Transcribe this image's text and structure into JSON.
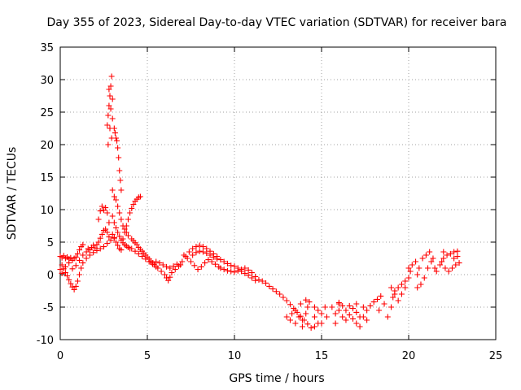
{
  "chart_data": {
    "type": "scatter",
    "title": "Day 355 of 2023, Sidereal Day-to-day VTEC variation (SDTVAR) for receiver bara",
    "xlabel": "GPS time / hours",
    "ylabel": "SDTVAR / TECUs",
    "xlim": [
      0,
      25
    ],
    "ylim": [
      -10,
      35
    ],
    "xticks": [
      0,
      5,
      10,
      15,
      20,
      25
    ],
    "yticks": [
      -10,
      -5,
      0,
      5,
      10,
      15,
      20,
      25,
      30,
      35
    ],
    "grid": true,
    "marker": "+",
    "color": "#ff0000",
    "series": [
      {
        "name": "SDTVAR",
        "points": [
          [
            0.0,
            2.8
          ],
          [
            0.1,
            2.6
          ],
          [
            0.2,
            2.9
          ],
          [
            0.3,
            2.5
          ],
          [
            0.4,
            2.7
          ],
          [
            0.5,
            2.4
          ],
          [
            0.6,
            2.6
          ],
          [
            0.7,
            2.2
          ],
          [
            0.8,
            2.5
          ],
          [
            0.9,
            2.7
          ],
          [
            1.0,
            3.2
          ],
          [
            1.1,
            3.8
          ],
          [
            1.2,
            4.3
          ],
          [
            1.3,
            4.6
          ],
          [
            0.1,
            1.5
          ],
          [
            0.2,
            0.9
          ],
          [
            0.3,
            0.3
          ],
          [
            0.4,
            -0.2
          ],
          [
            0.5,
            -0.8
          ],
          [
            0.6,
            -1.4
          ],
          [
            0.7,
            -1.9
          ],
          [
            0.8,
            -2.3
          ],
          [
            0.9,
            -1.8
          ],
          [
            1.0,
            -1.0
          ],
          [
            1.1,
            0.0
          ],
          [
            1.2,
            1.0
          ],
          [
            1.3,
            1.8
          ],
          [
            0.0,
            0.8
          ],
          [
            0.1,
            0.2
          ],
          [
            0.3,
            1.2
          ],
          [
            0.5,
            1.8
          ],
          [
            0.7,
            0.9
          ],
          [
            0.9,
            1.4
          ],
          [
            1.1,
            2.2
          ],
          [
            1.3,
            3.0
          ],
          [
            1.5,
            3.5
          ],
          [
            1.6,
            4.0
          ],
          [
            1.7,
            3.8
          ],
          [
            1.8,
            4.2
          ],
          [
            1.9,
            4.5
          ],
          [
            2.0,
            4.1
          ],
          [
            2.1,
            4.6
          ],
          [
            2.2,
            5.0
          ],
          [
            2.3,
            5.6
          ],
          [
            2.4,
            6.2
          ],
          [
            2.5,
            6.8
          ],
          [
            2.6,
            7.0
          ],
          [
            2.7,
            6.5
          ],
          [
            2.8,
            5.8
          ],
          [
            1.5,
            2.5
          ],
          [
            1.7,
            3.0
          ],
          [
            1.9,
            3.4
          ],
          [
            2.1,
            3.7
          ],
          [
            2.3,
            4.0
          ],
          [
            2.5,
            4.3
          ],
          [
            2.7,
            4.8
          ],
          [
            2.9,
            5.3
          ],
          [
            3.1,
            5.6
          ],
          [
            2.2,
            8.5
          ],
          [
            2.3,
            9.8
          ],
          [
            2.4,
            10.5
          ],
          [
            2.5,
            9.9
          ],
          [
            2.6,
            10.3
          ],
          [
            2.7,
            9.5
          ],
          [
            2.8,
            8.0
          ],
          [
            2.7,
            23.0
          ],
          [
            2.75,
            24.5
          ],
          [
            2.8,
            26.0
          ],
          [
            2.85,
            27.5
          ],
          [
            2.9,
            29.0
          ],
          [
            2.95,
            30.5
          ],
          [
            2.8,
            28.5
          ],
          [
            2.9,
            25.5
          ],
          [
            3.0,
            27.0
          ],
          [
            3.0,
            24.0
          ],
          [
            2.85,
            22.5
          ],
          [
            2.95,
            21.0
          ],
          [
            2.75,
            20.0
          ],
          [
            3.1,
            22.5
          ],
          [
            3.15,
            21.8
          ],
          [
            3.2,
            21.0
          ],
          [
            3.25,
            20.6
          ],
          [
            3.3,
            19.5
          ],
          [
            3.35,
            18.0
          ],
          [
            3.4,
            16.0
          ],
          [
            3.45,
            14.5
          ],
          [
            3.5,
            13.0
          ],
          [
            3.0,
            13.0
          ],
          [
            3.1,
            12.0
          ],
          [
            3.2,
            11.5
          ],
          [
            3.3,
            10.5
          ],
          [
            3.4,
            9.5
          ],
          [
            3.5,
            8.5
          ],
          [
            3.6,
            7.5
          ],
          [
            3.7,
            7.0
          ],
          [
            3.8,
            6.5
          ],
          [
            3.9,
            6.0
          ],
          [
            3.0,
            9.0
          ],
          [
            3.1,
            8.0
          ],
          [
            3.2,
            7.2
          ],
          [
            3.3,
            6.5
          ],
          [
            3.4,
            5.9
          ],
          [
            3.5,
            5.3
          ],
          [
            3.6,
            4.9
          ],
          [
            3.7,
            4.6
          ],
          [
            3.8,
            4.4
          ],
          [
            3.9,
            4.2
          ],
          [
            4.0,
            4.0
          ],
          [
            3.6,
            5.5
          ],
          [
            3.7,
            6.5
          ],
          [
            3.8,
            7.5
          ],
          [
            3.9,
            8.5
          ],
          [
            4.0,
            9.5
          ],
          [
            4.1,
            10.2
          ],
          [
            4.2,
            10.8
          ],
          [
            4.3,
            11.3
          ],
          [
            4.4,
            11.6
          ],
          [
            4.5,
            11.9
          ],
          [
            4.6,
            12.0
          ],
          [
            3.0,
            6.2
          ],
          [
            3.1,
            5.7
          ],
          [
            3.2,
            5.0
          ],
          [
            3.3,
            4.5
          ],
          [
            3.4,
            4.0
          ],
          [
            3.5,
            3.8
          ],
          [
            4.1,
            5.5
          ],
          [
            4.2,
            5.2
          ],
          [
            4.3,
            4.9
          ],
          [
            4.4,
            4.6
          ],
          [
            4.5,
            4.2
          ],
          [
            4.6,
            3.9
          ],
          [
            4.7,
            3.6
          ],
          [
            4.8,
            3.3
          ],
          [
            4.9,
            3.0
          ],
          [
            5.0,
            2.7
          ],
          [
            5.1,
            2.4
          ],
          [
            5.2,
            2.1
          ],
          [
            5.3,
            1.8
          ],
          [
            4.1,
            4.0
          ],
          [
            4.3,
            3.6
          ],
          [
            4.5,
            3.2
          ],
          [
            4.7,
            2.8
          ],
          [
            4.9,
            2.4
          ],
          [
            5.1,
            2.0
          ],
          [
            5.3,
            1.6
          ],
          [
            5.5,
            1.2
          ],
          [
            5.4,
            1.5
          ],
          [
            5.6,
            1.0
          ],
          [
            5.8,
            0.5
          ],
          [
            6.0,
            0.0
          ],
          [
            6.1,
            -0.5
          ],
          [
            6.2,
            -0.9
          ],
          [
            6.3,
            -0.4
          ],
          [
            6.4,
            0.3
          ],
          [
            6.6,
            0.8
          ],
          [
            6.8,
            1.3
          ],
          [
            6.9,
            1.5
          ],
          [
            5.5,
            2.0
          ],
          [
            5.7,
            1.8
          ],
          [
            5.9,
            1.5
          ],
          [
            6.1,
            1.2
          ],
          [
            6.3,
            1.0
          ],
          [
            6.5,
            1.3
          ],
          [
            6.7,
            1.6
          ],
          [
            7.0,
            2.0
          ],
          [
            7.2,
            2.8
          ],
          [
            7.4,
            3.5
          ],
          [
            7.6,
            4.0
          ],
          [
            7.8,
            4.3
          ],
          [
            8.0,
            4.5
          ],
          [
            8.2,
            4.3
          ],
          [
            8.4,
            4.0
          ],
          [
            8.6,
            3.6
          ],
          [
            8.8,
            3.2
          ],
          [
            9.0,
            2.8
          ],
          [
            9.2,
            2.3
          ],
          [
            9.4,
            2.0
          ],
          [
            9.6,
            1.7
          ],
          [
            9.8,
            1.4
          ],
          [
            7.1,
            3.0
          ],
          [
            7.3,
            2.5
          ],
          [
            7.5,
            2.0
          ],
          [
            7.7,
            1.4
          ],
          [
            7.9,
            0.8
          ],
          [
            8.1,
            1.2
          ],
          [
            8.3,
            1.8
          ],
          [
            8.5,
            2.3
          ],
          [
            8.7,
            2.0
          ],
          [
            8.9,
            1.6
          ],
          [
            9.1,
            1.2
          ],
          [
            7.6,
            3.0
          ],
          [
            7.8,
            3.4
          ],
          [
            8.0,
            3.6
          ],
          [
            8.2,
            3.5
          ],
          [
            8.4,
            3.3
          ],
          [
            8.6,
            3.0
          ],
          [
            8.8,
            2.7
          ],
          [
            9.0,
            2.4
          ],
          [
            9.2,
            1.0
          ],
          [
            9.4,
            0.8
          ],
          [
            9.6,
            0.6
          ],
          [
            9.8,
            0.5
          ],
          [
            10.0,
            0.4
          ],
          [
            10.2,
            0.6
          ],
          [
            10.4,
            0.8
          ],
          [
            10.6,
            1.0
          ],
          [
            10.8,
            0.7
          ],
          [
            11.0,
            0.3
          ],
          [
            11.2,
            -0.3
          ],
          [
            11.4,
            -0.8
          ],
          [
            11.6,
            -1.0
          ],
          [
            11.8,
            -1.3
          ],
          [
            10.0,
            1.3
          ],
          [
            10.2,
            1.0
          ],
          [
            10.4,
            0.5
          ],
          [
            10.6,
            0.2
          ],
          [
            10.8,
            -0.1
          ],
          [
            11.0,
            -0.5
          ],
          [
            11.2,
            -0.9
          ],
          [
            12.0,
            -1.8
          ],
          [
            12.2,
            -2.2
          ],
          [
            12.4,
            -2.6
          ],
          [
            12.6,
            -3.0
          ],
          [
            12.8,
            -3.5
          ],
          [
            13.0,
            -4.0
          ],
          [
            13.2,
            -4.6
          ],
          [
            13.4,
            -5.2
          ],
          [
            13.6,
            -5.8
          ],
          [
            13.8,
            -6.4
          ],
          [
            14.0,
            -7.0
          ],
          [
            14.2,
            -7.6
          ],
          [
            14.4,
            -8.2
          ],
          [
            13.9,
            -8.0
          ],
          [
            13.3,
            -6.0
          ],
          [
            13.5,
            -5.5
          ],
          [
            13.7,
            -6.5
          ],
          [
            13.9,
            -7.0
          ],
          [
            14.1,
            -6.0
          ],
          [
            14.2,
            -5.0
          ],
          [
            14.3,
            -4.2
          ],
          [
            14.1,
            -3.9
          ],
          [
            13.8,
            -4.5
          ],
          [
            13.5,
            -7.5
          ],
          [
            13.2,
            -7.0
          ],
          [
            13.0,
            -6.5
          ],
          [
            14.6,
            -5.0
          ],
          [
            14.6,
            -6.5
          ],
          [
            14.6,
            -8.0
          ],
          [
            14.8,
            -7.5
          ],
          [
            14.8,
            -5.5
          ],
          [
            15.0,
            -6.0
          ],
          [
            15.0,
            -7.5
          ],
          [
            15.2,
            -5.0
          ],
          [
            15.3,
            -6.5
          ],
          [
            15.6,
            -5.0
          ],
          [
            15.8,
            -6.0
          ],
          [
            16.0,
            -5.5
          ],
          [
            16.2,
            -4.8
          ],
          [
            16.4,
            -5.5
          ],
          [
            16.6,
            -6.2
          ],
          [
            16.8,
            -6.8
          ],
          [
            17.0,
            -7.5
          ],
          [
            17.2,
            -8.0
          ],
          [
            17.4,
            -6.5
          ],
          [
            17.6,
            -5.5
          ],
          [
            17.8,
            -4.8
          ],
          [
            18.0,
            -4.2
          ],
          [
            18.2,
            -3.8
          ],
          [
            18.4,
            -3.3
          ],
          [
            16.0,
            -4.5
          ],
          [
            16.2,
            -6.5
          ],
          [
            16.4,
            -7.0
          ],
          [
            16.6,
            -4.8
          ],
          [
            16.8,
            -5.2
          ],
          [
            17.0,
            -5.8
          ],
          [
            17.2,
            -6.5
          ],
          [
            17.4,
            -5.0
          ],
          [
            17.6,
            -7.0
          ],
          [
            15.8,
            -7.5
          ],
          [
            16.0,
            -4.3
          ],
          [
            17.0,
            -4.5
          ],
          [
            18.3,
            -5.5
          ],
          [
            18.6,
            -4.5
          ],
          [
            18.8,
            -6.5
          ],
          [
            19.0,
            -5.0
          ],
          [
            19.1,
            -3.5
          ],
          [
            19.2,
            -2.5
          ],
          [
            19.4,
            -2.0
          ],
          [
            19.6,
            -1.5
          ],
          [
            19.8,
            -1.0
          ],
          [
            20.0,
            -0.5
          ],
          [
            19.0,
            -2.0
          ],
          [
            19.2,
            -3.0
          ],
          [
            19.4,
            -4.0
          ],
          [
            19.6,
            -3.0
          ],
          [
            19.8,
            -2.0
          ],
          [
            20.0,
            1.0
          ],
          [
            20.1,
            0.5
          ],
          [
            20.2,
            1.5
          ],
          [
            20.4,
            2.0
          ],
          [
            20.5,
            0.0
          ],
          [
            20.6,
            1.0
          ],
          [
            20.8,
            2.5
          ],
          [
            21.0,
            3.0
          ],
          [
            21.2,
            3.5
          ],
          [
            21.3,
            2.0
          ],
          [
            21.1,
            1.0
          ],
          [
            20.9,
            -0.5
          ],
          [
            20.7,
            -1.5
          ],
          [
            20.5,
            -2.0
          ],
          [
            21.4,
            2.5
          ],
          [
            21.6,
            0.5
          ],
          [
            21.8,
            1.5
          ],
          [
            22.0,
            2.5
          ],
          [
            22.2,
            3.0
          ],
          [
            22.4,
            3.2
          ],
          [
            22.6,
            3.5
          ],
          [
            22.8,
            3.6
          ],
          [
            22.1,
            1.0
          ],
          [
            22.3,
            0.5
          ],
          [
            22.5,
            1.0
          ],
          [
            22.7,
            1.5
          ],
          [
            22.9,
            1.8
          ],
          [
            21.9,
            2.0
          ],
          [
            21.5,
            1.0
          ],
          [
            22.0,
            3.5
          ],
          [
            22.6,
            2.5
          ],
          [
            22.8,
            2.8
          ]
        ]
      }
    ]
  }
}
